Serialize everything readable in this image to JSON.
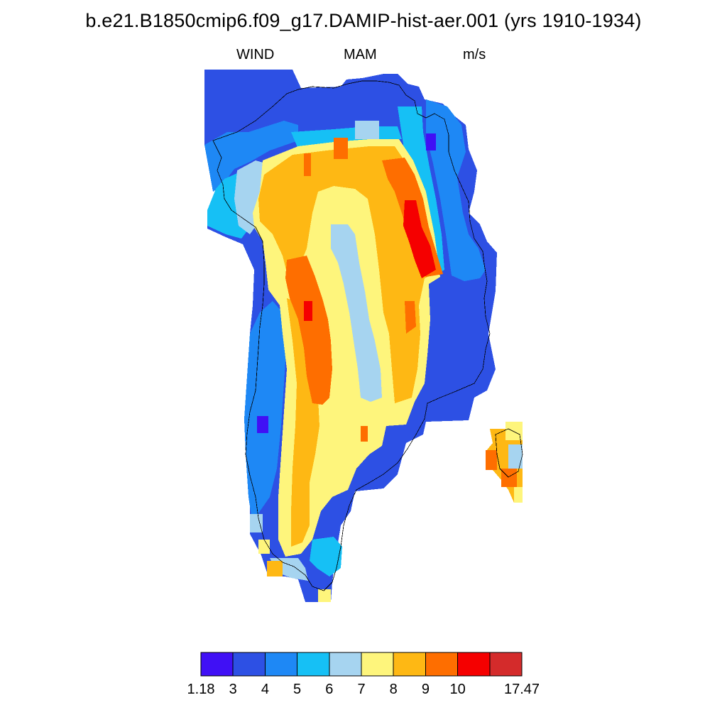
{
  "title": "b.e21.B1850cmip6.f09_g17.DAMIP-hist-aer.001 (yrs 1910-1934)",
  "subtitle": {
    "left": "WIND",
    "center": "MAM",
    "right": "m/s"
  },
  "colorbar": {
    "colors": [
      "#4010f5",
      "#2d50e4",
      "#1e88f5",
      "#16c0f5",
      "#a6d4f0",
      "#fef57c",
      "#feb814",
      "#fe6e00",
      "#f50000",
      "#d42b2b"
    ],
    "labels": [
      "1.18",
      "3",
      "4",
      "5",
      "6",
      "7",
      "8",
      "9",
      "10",
      "17.47"
    ]
  },
  "chart_data": {
    "type": "heatmap",
    "variable": "WIND",
    "season": "MAM",
    "units": "m/s",
    "value_range": [
      1.18,
      17.47
    ],
    "levels": [
      3,
      4,
      5,
      6,
      7,
      8,
      9,
      10
    ],
    "region": "Greenland",
    "field_description_by_zone": {
      "northern coast": "3-5",
      "northern interior band": "8-9, local 9-10",
      "central ice sheet core": "6-8",
      "west-central slope": "9-10, local max >10",
      "northeast slope": "9-10, local max >10",
      "eastern margin": "3-5",
      "western margin": "3-6",
      "southern tip": "5-8"
    }
  }
}
